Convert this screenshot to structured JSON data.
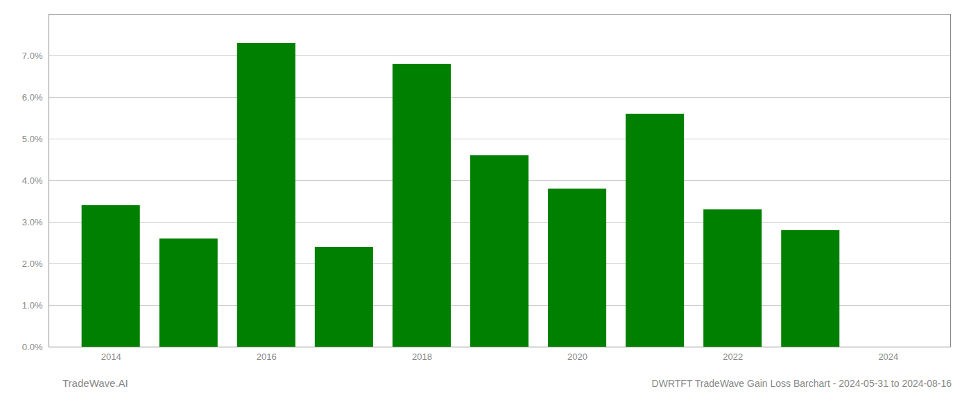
{
  "chart_data": {
    "type": "bar",
    "x": [
      2014,
      2015,
      2016,
      2017,
      2018,
      2019,
      2020,
      2021,
      2022,
      2023
    ],
    "values": [
      0.034,
      0.026,
      0.073,
      0.024,
      0.068,
      0.046,
      0.038,
      0.056,
      0.033,
      0.028
    ],
    "color": "#008000",
    "xlim": [
      2013.2,
      2024.8
    ],
    "xticks": [
      2014,
      2016,
      2018,
      2020,
      2022,
      2024
    ],
    "ylim": [
      0,
      0.08
    ],
    "yticks": [
      {
        "value": 0.0,
        "label": "0.0%"
      },
      {
        "value": 0.01,
        "label": "1.0%"
      },
      {
        "value": 0.02,
        "label": "2.0%"
      },
      {
        "value": 0.03,
        "label": "3.0%"
      },
      {
        "value": 0.04,
        "label": "4.0%"
      },
      {
        "value": 0.05,
        "label": "5.0%"
      },
      {
        "value": 0.06,
        "label": "6.0%"
      },
      {
        "value": 0.07,
        "label": "7.0%"
      }
    ],
    "grid": "y",
    "annotations": [
      "TradeWave.AI",
      "DWRTFT TradeWave Gain Loss Barchart - 2024-05-31 to 2024-08-16"
    ]
  }
}
